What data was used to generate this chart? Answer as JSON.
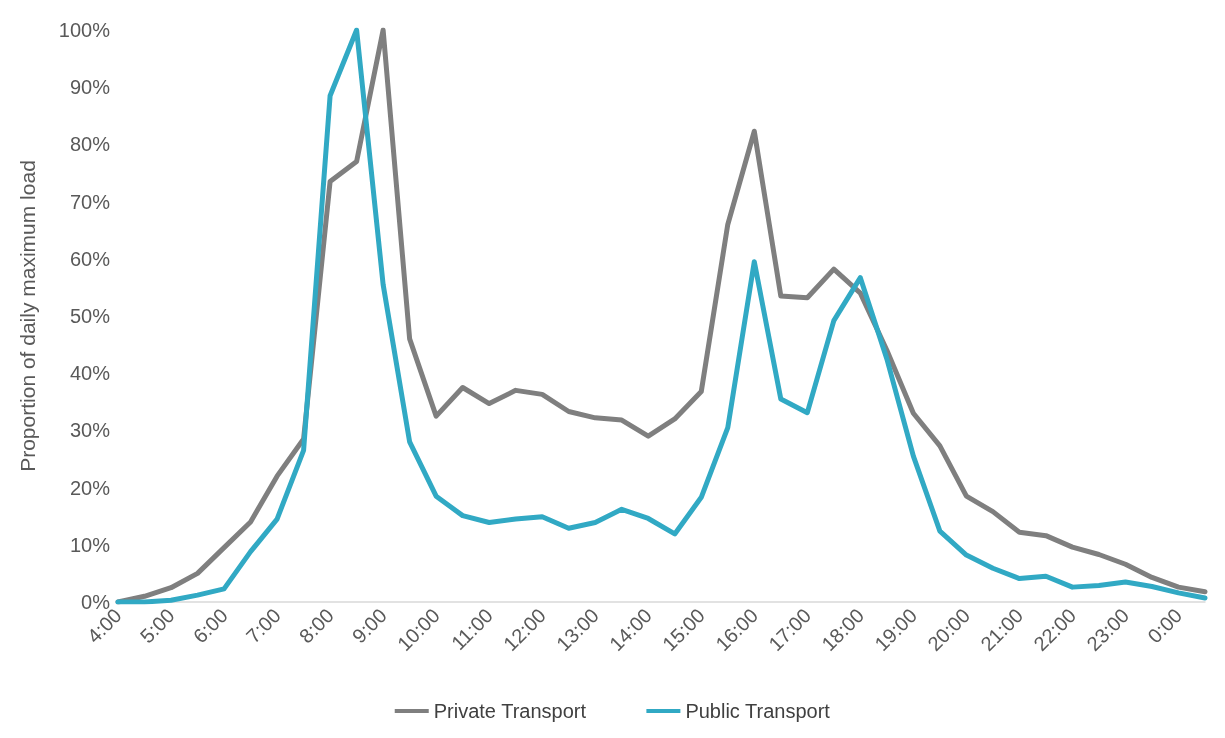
{
  "chart_data": {
    "type": "line",
    "ylabel": "Proportion of daily maximum load",
    "categories": [
      "4:00",
      null,
      "5:00",
      null,
      "6:00",
      null,
      "7:00",
      null,
      "8:00",
      null,
      "9:00",
      null,
      "10:00",
      null,
      "11:00",
      null,
      "12:00",
      null,
      "13:00",
      null,
      "14:00",
      null,
      "15:00",
      null,
      "16:00",
      null,
      "17:00",
      null,
      "18:00",
      null,
      "19:00",
      null,
      "20:00",
      null,
      "21:00",
      null,
      "22:00",
      null,
      "23:00",
      null,
      "0:00",
      null
    ],
    "series": [
      {
        "name": "Private Transport",
        "color": "#7f7f7f",
        "values": [
          0,
          1,
          2.5,
          5,
          9.5,
          14,
          22,
          28.5,
          73.5,
          77,
          100,
          46,
          32.5,
          37.5,
          34.7,
          37,
          36.3,
          33.3,
          32.2,
          31.8,
          29,
          32,
          36.8,
          66,
          82.3,
          53.5,
          53.2,
          58.2,
          54,
          44,
          33,
          27.3,
          18.5,
          15.8,
          12.2,
          11.6,
          9.6,
          8.3,
          6.6,
          4.3,
          2.6,
          1.8
        ]
      },
      {
        "name": "Public Transport",
        "color": "#31a9c4",
        "values": [
          0,
          0,
          0.3,
          1.2,
          2.3,
          8.8,
          14.5,
          26.5,
          88.5,
          100,
          55.5,
          28,
          18.5,
          15.1,
          13.9,
          14.5,
          14.9,
          12.9,
          13.9,
          16.2,
          14.6,
          11.9,
          18.3,
          30.5,
          59.5,
          35.5,
          33.1,
          49.2,
          56.7,
          42.5,
          25.5,
          12.4,
          8.2,
          5.9,
          4.1,
          4.5,
          2.6,
          2.9,
          3.5,
          2.7,
          1.6,
          0.7
        ]
      }
    ],
    "ylim": [
      0,
      100
    ],
    "yticks": [
      {
        "value": 0,
        "label": "0%"
      },
      {
        "value": 10,
        "label": "10%"
      },
      {
        "value": 20,
        "label": "20%"
      },
      {
        "value": 30,
        "label": "30%"
      },
      {
        "value": 40,
        "label": "40%"
      },
      {
        "value": 50,
        "label": "50%"
      },
      {
        "value": 60,
        "label": "60%"
      },
      {
        "value": 70,
        "label": "70%"
      },
      {
        "value": 80,
        "label": "80%"
      },
      {
        "value": 90,
        "label": "90%"
      },
      {
        "value": 100,
        "label": "100%"
      }
    ],
    "grid": false,
    "legend": "bottom",
    "marker": "none",
    "line_style": "solid"
  }
}
